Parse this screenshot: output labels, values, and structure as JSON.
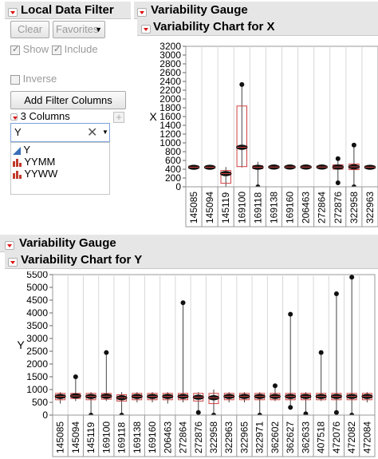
{
  "filter_panel": {
    "title": "Local Data Filter",
    "clear_label": "Clear",
    "favorites_label": "Favorites",
    "show_label": "Show",
    "include_label": "Include",
    "inverse_label": "Inverse",
    "add_filter_label": "Add Filter Columns",
    "columns_count_label": "3 Columns",
    "search_value": "Y",
    "columns": [
      {
        "name": "Y",
        "icon": "continuous-icon"
      },
      {
        "name": "YYMM",
        "icon": "nominal-bar-icon"
      },
      {
        "name": "YYWW",
        "icon": "nominal-bar-icon"
      }
    ]
  },
  "gauge_x": {
    "report_title": "Variability Gauge",
    "chart_title": "Variability Chart for X"
  },
  "gauge_y": {
    "report_title": "Variability Gauge",
    "chart_title": "Variability Chart for Y"
  },
  "colors": {
    "header": "#e6e6e6",
    "accent": "#d11111",
    "box": "#d04040"
  },
  "chart_data": [
    {
      "type": "box",
      "title": "Variability Chart for X",
      "ylabel": "X",
      "ylim": [
        0,
        3200
      ],
      "yticks": [
        0,
        200,
        400,
        600,
        800,
        1000,
        1200,
        1400,
        1600,
        1800,
        2000,
        2200,
        2400,
        2600,
        2800,
        3000,
        3200
      ],
      "categories": [
        "145085",
        "145094",
        "145119",
        "169100",
        "169118",
        "169138",
        "169160",
        "206463",
        "272864",
        "272876",
        "322958",
        "322963"
      ],
      "groups": [
        {
          "q1": 420,
          "q3": 470,
          "min": 400,
          "max": 490,
          "mean": 445
        },
        {
          "q1": 430,
          "q3": 460,
          "min": 425,
          "max": 465,
          "mean": 445
        },
        {
          "q1": 80,
          "q3": 370,
          "min": 0,
          "max": 450,
          "mean": 300
        },
        {
          "q1": 460,
          "q3": 1840,
          "min": 440,
          "max": 2330,
          "mean": 900
        },
        {
          "q1": 410,
          "q3": 480,
          "min": 0,
          "max": 570,
          "mean": 445
        },
        {
          "q1": 430,
          "q3": 470,
          "min": 410,
          "max": 490,
          "mean": 450
        },
        {
          "q1": 430,
          "q3": 470,
          "min": 410,
          "max": 490,
          "mean": 450
        },
        {
          "q1": 430,
          "q3": 470,
          "min": 410,
          "max": 490,
          "mean": 450
        },
        {
          "q1": 430,
          "q3": 470,
          "min": 410,
          "max": 490,
          "mean": 450
        },
        {
          "q1": 400,
          "q3": 500,
          "min": 90,
          "max": 640,
          "mean": 450
        },
        {
          "q1": 390,
          "q3": 520,
          "min": 0,
          "max": 950,
          "mean": 455
        },
        {
          "q1": 420,
          "q3": 470,
          "min": 400,
          "max": 490,
          "mean": 445
        }
      ]
    },
    {
      "type": "box",
      "title": "Variability Chart for Y",
      "ylabel": "Y",
      "ylim": [
        0,
        5500
      ],
      "yticks": [
        0,
        500,
        1000,
        1500,
        2000,
        2500,
        3000,
        3500,
        4000,
        4500,
        5000,
        5500
      ],
      "categories": [
        "145085",
        "145094",
        "145119",
        "169100",
        "169118",
        "169138",
        "169160",
        "206463",
        "272864",
        "272876",
        "322958",
        "322963",
        "322965",
        "322971",
        "362602",
        "362627",
        "362633",
        "407518",
        "472076",
        "472082",
        "472084"
      ],
      "groups": [
        {
          "q1": 600,
          "q3": 850,
          "min": 450,
          "max": 900,
          "mean": 730
        },
        {
          "q1": 650,
          "q3": 850,
          "min": 550,
          "max": 1500,
          "mean": 750
        },
        {
          "q1": 600,
          "q3": 850,
          "min": 0,
          "max": 900,
          "mean": 730
        },
        {
          "q1": 620,
          "q3": 850,
          "min": 550,
          "max": 2450,
          "mean": 740
        },
        {
          "q1": 550,
          "q3": 800,
          "min": 0,
          "max": 900,
          "mean": 680
        },
        {
          "q1": 600,
          "q3": 850,
          "min": 500,
          "max": 900,
          "mean": 730
        },
        {
          "q1": 600,
          "q3": 850,
          "min": 500,
          "max": 900,
          "mean": 730
        },
        {
          "q1": 600,
          "q3": 850,
          "min": 450,
          "max": 900,
          "mean": 730
        },
        {
          "q1": 600,
          "q3": 850,
          "min": 500,
          "max": 4400,
          "mean": 730
        },
        {
          "q1": 550,
          "q3": 850,
          "min": 100,
          "max": 900,
          "mean": 700
        },
        {
          "q1": 450,
          "q3": 850,
          "min": 0,
          "max": 1000,
          "mean": 680
        },
        {
          "q1": 600,
          "q3": 850,
          "min": 500,
          "max": 900,
          "mean": 730
        },
        {
          "q1": 600,
          "q3": 850,
          "min": 500,
          "max": 900,
          "mean": 730
        },
        {
          "q1": 600,
          "q3": 850,
          "min": 0,
          "max": 900,
          "mean": 730
        },
        {
          "q1": 600,
          "q3": 850,
          "min": 550,
          "max": 1150,
          "mean": 730
        },
        {
          "q1": 600,
          "q3": 850,
          "min": 300,
          "max": 3950,
          "mean": 730
        },
        {
          "q1": 600,
          "q3": 850,
          "min": 50,
          "max": 900,
          "mean": 730
        },
        {
          "q1": 600,
          "q3": 850,
          "min": 550,
          "max": 2450,
          "mean": 730
        },
        {
          "q1": 600,
          "q3": 850,
          "min": 100,
          "max": 4750,
          "mean": 730
        },
        {
          "q1": 600,
          "q3": 850,
          "min": 0,
          "max": 5400,
          "mean": 730
        },
        {
          "q1": 600,
          "q3": 850,
          "min": 500,
          "max": 900,
          "mean": 730
        }
      ]
    }
  ]
}
